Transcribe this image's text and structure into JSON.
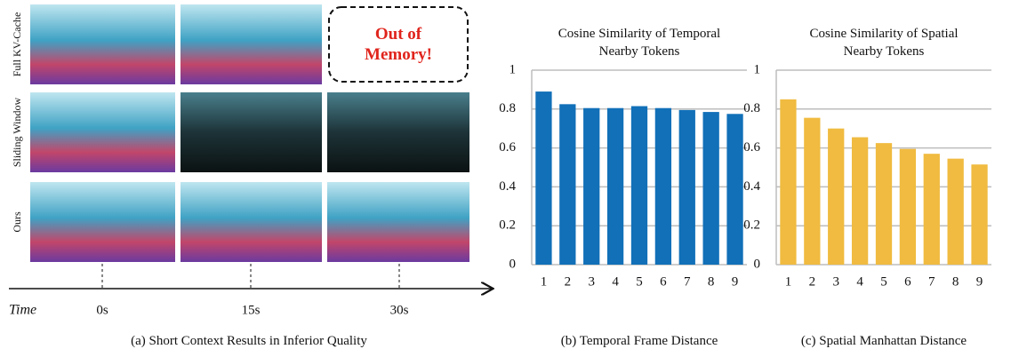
{
  "panel_a": {
    "row_labels": [
      "Full KV-Cache",
      "Sliding Window",
      "Ours"
    ],
    "oom_text": "Out of Memory!",
    "time_label": "Time",
    "times": [
      "0s",
      "15s",
      "30s"
    ],
    "caption": "(a) Short Context Results in Inferior Quality"
  },
  "chart_data": [
    {
      "type": "bar",
      "title": "Cosine Similarity of Temporal Nearby Tokens",
      "caption": "(b) Temporal Frame Distance",
      "categories": [
        "1",
        "2",
        "3",
        "4",
        "5",
        "6",
        "7",
        "8",
        "9"
      ],
      "values": [
        0.89,
        0.825,
        0.805,
        0.805,
        0.815,
        0.805,
        0.795,
        0.785,
        0.775
      ],
      "color": "#1170b8",
      "ylim": [
        0,
        1
      ],
      "yticks": [
        0,
        0.2,
        0.4,
        0.6,
        0.8,
        1
      ],
      "grid": true
    },
    {
      "type": "bar",
      "title": "Cosine Similarity of Spatial Nearby Tokens",
      "caption": "(c) Spatial Manhattan Distance",
      "categories": [
        "1",
        "2",
        "3",
        "4",
        "5",
        "6",
        "7",
        "8",
        "9"
      ],
      "values": [
        0.85,
        0.755,
        0.7,
        0.655,
        0.625,
        0.595,
        0.57,
        0.545,
        0.515
      ],
      "color": "#f0bb40",
      "ylim": [
        0,
        1
      ],
      "yticks": [
        0,
        0.2,
        0.4,
        0.6,
        0.8,
        1
      ],
      "grid": true
    }
  ]
}
